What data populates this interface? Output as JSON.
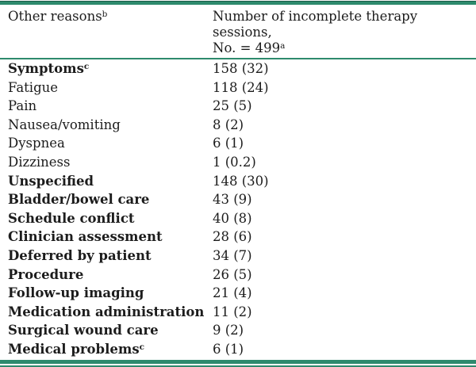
{
  "colors": {
    "rule_teal": "#2e8a6d",
    "text": "#1c1c1c"
  },
  "table": {
    "header": {
      "reason": {
        "text": "Other reasons",
        "sup": "b"
      },
      "sessions": {
        "line1": "Number of incomplete therapy sessions,",
        "line2": "No. = 499",
        "sup": "a"
      }
    },
    "rows": [
      {
        "label": "Symptoms",
        "sup": "c",
        "bold": true,
        "value": "158 (32)"
      },
      {
        "label": "Fatigue",
        "sup": "",
        "bold": false,
        "value": "118 (24)"
      },
      {
        "label": "Pain",
        "sup": "",
        "bold": false,
        "value": "25 (5)"
      },
      {
        "label": "Nausea/vomiting",
        "sup": "",
        "bold": false,
        "value": "8 (2)"
      },
      {
        "label": "Dyspnea",
        "sup": "",
        "bold": false,
        "value": "6 (1)"
      },
      {
        "label": "Dizziness",
        "sup": "",
        "bold": false,
        "value": "1 (0.2)"
      },
      {
        "label": "Unspecified",
        "sup": "",
        "bold": true,
        "value": "148 (30)"
      },
      {
        "label": "Bladder/bowel care",
        "sup": "",
        "bold": true,
        "value": "43 (9)"
      },
      {
        "label": "Schedule conflict",
        "sup": "",
        "bold": true,
        "value": "40 (8)"
      },
      {
        "label": "Clinician assessment",
        "sup": "",
        "bold": true,
        "value": "28 (6)"
      },
      {
        "label": "Deferred by patient",
        "sup": "",
        "bold": true,
        "value": "34 (7)"
      },
      {
        "label": "Procedure",
        "sup": "",
        "bold": true,
        "value": "26 (5)"
      },
      {
        "label": "Follow-up imaging",
        "sup": "",
        "bold": true,
        "value": "21 (4)"
      },
      {
        "label": "Medication administration",
        "sup": "",
        "bold": true,
        "value": "11 (2)"
      },
      {
        "label": "Surgical wound care",
        "sup": "",
        "bold": true,
        "value": "9 (2)"
      },
      {
        "label": "Medical problems",
        "sup": "c",
        "bold": true,
        "value": "6 (1)"
      }
    ]
  }
}
